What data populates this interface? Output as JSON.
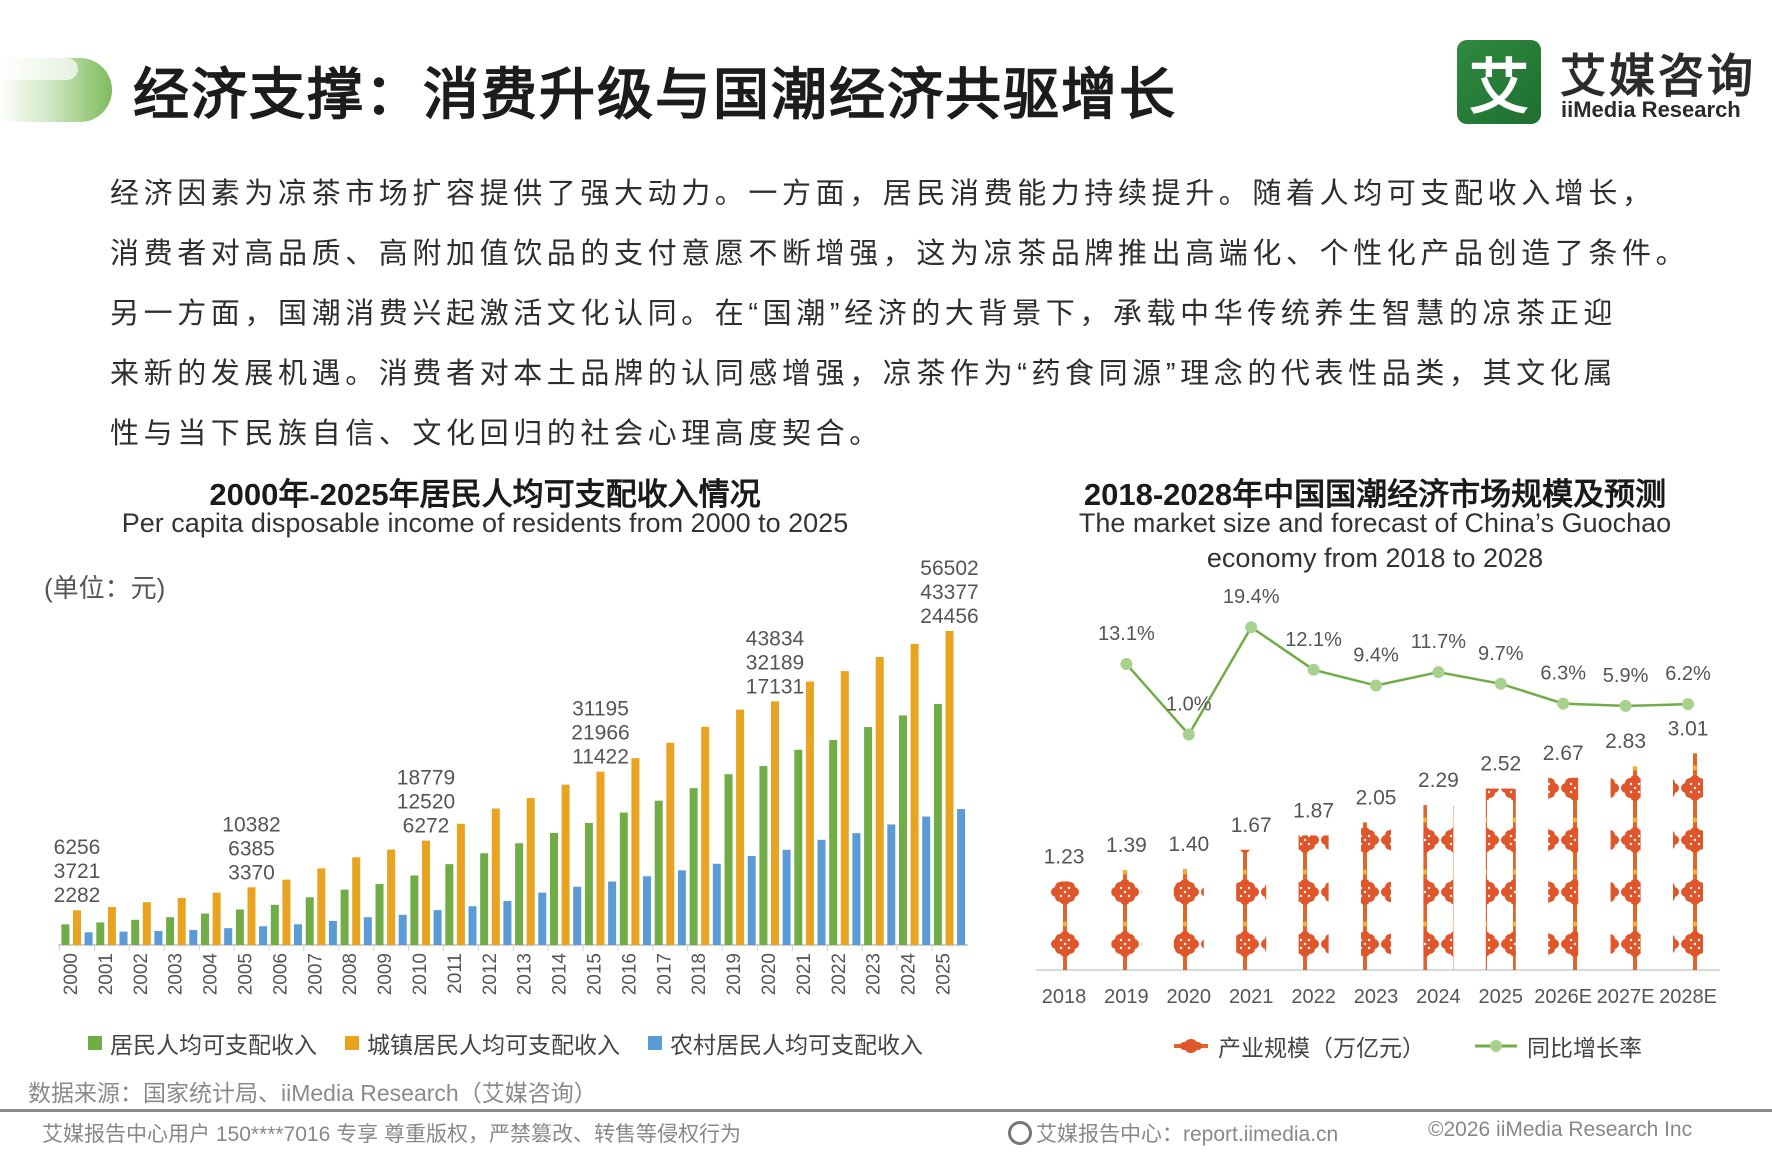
{
  "header": {
    "title": "经济支撑：消费升级与国潮经济共驱增长",
    "logo_mark": "艾",
    "logo_cn": "艾媒咨询",
    "logo_en": "iiMedia Research"
  },
  "body_text": [
    "经济因素为凉茶市场扩容提供了强大动力。一方面，居民消费能力持续提升。随着人均可支配收入增长，",
    "消费者对高品质、高附加值饮品的支付意愿不断增强，这为凉茶品牌推出高端化、个性化产品创造了条件。",
    "另一方面，国潮消费兴起激活文化认同。在“国潮”经济的大背景下，承载中华传统养生智慧的凉茶正迎",
    "来新的发展机遇。消费者对本土品牌的认同感增强，凉茶作为“药食同源”理念的代表性品类，其文化属",
    "性与当下民族自信、文化回归的社会心理高度契合。"
  ],
  "chart_data": [
    {
      "type": "bar",
      "title": "2000年-2025年居民人均可支配收入情况",
      "subtitle": "Per capita disposable income of residents from 2000 to 2025",
      "unit": "(单位：元)",
      "categories": [
        "2000",
        "2001",
        "2002",
        "2003",
        "2004",
        "2005",
        "2006",
        "2007",
        "2008",
        "2009",
        "2010",
        "2011",
        "2012",
        "2013",
        "2014",
        "2015",
        "2016",
        "2017",
        "2018",
        "2019",
        "2020",
        "2021",
        "2022",
        "2023",
        "2024",
        "2025"
      ],
      "series": [
        {
          "name": "居民人均可支配收入",
          "color": "#70ad47",
          "values": [
            3721,
            4058,
            4532,
            5007,
            5661,
            6385,
            7229,
            8584,
            9957,
            10977,
            12520,
            14551,
            16510,
            18311,
            20167,
            21966,
            23821,
            25974,
            28228,
            30733,
            32189,
            35128,
            36883,
            39218,
            41314,
            43377
          ]
        },
        {
          "name": "城镇居民人均可支配收入",
          "color": "#e8a321",
          "values": [
            6256,
            6860,
            7703,
            8472,
            9422,
            10382,
            11759,
            13786,
            15781,
            17175,
            18779,
            21810,
            24565,
            26467,
            28844,
            31195,
            33616,
            36396,
            39251,
            42359,
            43834,
            47412,
            49283,
            51821,
            54188,
            56502
          ]
        },
        {
          "name": "农村居民人均可支配收入",
          "color": "#5b9bd5",
          "values": [
            2282,
            2407,
            2529,
            2690,
            3027,
            3370,
            3731,
            4327,
            4999,
            5435,
            6272,
            6977,
            7917,
            9430,
            10489,
            11422,
            12363,
            13432,
            14617,
            16021,
            17131,
            18931,
            20133,
            21691,
            23119,
            24456
          ]
        }
      ],
      "labeled_years": [
        "2000",
        "2005",
        "2010",
        "2015",
        "2020",
        "2025"
      ],
      "ylim": [
        0,
        60000
      ]
    },
    {
      "type": "bar+line",
      "title": "2018-2028年中国国潮经济市场规模及预测",
      "subtitle_1": "The market size and forecast of China’s Guochao",
      "subtitle_2": "economy from 2018 to 2028",
      "categories": [
        "2018",
        "2019",
        "2020",
        "2021",
        "2022",
        "2023",
        "2024",
        "2025",
        "2026E",
        "2027E",
        "2028E"
      ],
      "series": [
        {
          "name": "产业规模（万亿元）",
          "color": "#e0552a",
          "values": [
            1.23,
            1.39,
            1.4,
            1.67,
            1.87,
            2.05,
            2.29,
            2.52,
            2.67,
            2.83,
            3.01
          ],
          "labels": [
            "1.23",
            "1.39",
            "1.40",
            "1.67",
            "1.87",
            "2.05",
            "2.29",
            "2.52",
            "2.67",
            "2.83",
            "3.01"
          ]
        },
        {
          "name": "同比增长率",
          "color": "#70ad47",
          "values": [
            null,
            13.1,
            1.0,
            19.4,
            12.1,
            9.4,
            11.7,
            9.7,
            6.3,
            5.9,
            6.2
          ],
          "labels": [
            "",
            "13.1%",
            "1.0%",
            "19.4%",
            "12.1%",
            "9.4%",
            "11.7%",
            "9.7%",
            "6.3%",
            "5.9%",
            "6.2%"
          ]
        }
      ]
    }
  ],
  "source": "数据来源：国家统计局、iiMedia Research（艾媒咨询）",
  "footer": {
    "left": "艾媒报告中心用户 150****7016 专享 尊重版权，严禁篡改、转售等侵权行为",
    "center": "艾媒报告中心：report.iimedia.cn",
    "right": "©2026  iiMedia Research  Inc"
  }
}
